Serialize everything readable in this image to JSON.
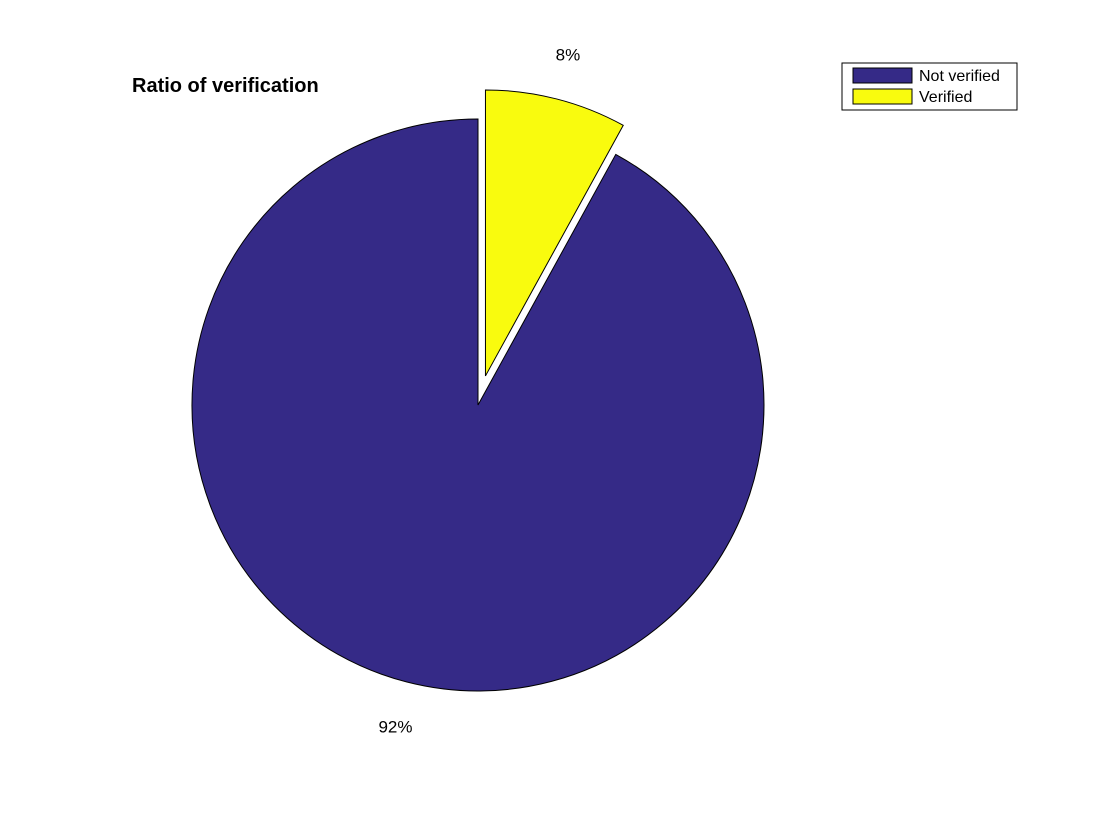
{
  "chart_data": {
    "type": "pie",
    "title": "Ratio of verification",
    "slices": [
      {
        "name": "Not verified",
        "value": 92,
        "label": "92%",
        "color": "#352a87",
        "exploded": false
      },
      {
        "name": "Verified",
        "value": 8,
        "label": "8%",
        "color": "#f9fb0e",
        "exploded": true
      }
    ],
    "legend": {
      "placement": "top-right",
      "entries": [
        "Not verified",
        "Verified"
      ]
    }
  }
}
